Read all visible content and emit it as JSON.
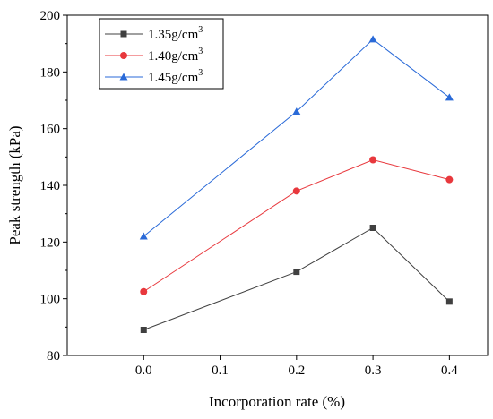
{
  "chart_data": {
    "type": "line",
    "xlabel": "Incorporation rate (%)",
    "ylabel": "Peak strength (kPa)",
    "xlim": [
      -0.1,
      0.45
    ],
    "ylim": [
      80,
      200
    ],
    "x_ticks": [
      "0.0",
      "0.1",
      "0.2",
      "0.3",
      "0.4"
    ],
    "x_tick_values": [
      0.0,
      0.1,
      0.2,
      0.3,
      0.4
    ],
    "y_ticks": [
      "80",
      "100",
      "120",
      "140",
      "160",
      "180",
      "200"
    ],
    "y_tick_values": [
      80,
      100,
      120,
      140,
      160,
      180,
      200
    ],
    "grid": false,
    "legend_position": "top-left",
    "x": [
      0.0,
      0.2,
      0.3,
      0.4
    ],
    "series": [
      {
        "name_base": "1.35g/cm",
        "name_sup": "3",
        "marker": "square",
        "color": "#404040",
        "values": [
          89,
          109.5,
          125,
          99
        ]
      },
      {
        "name_base": "1.40g/cm",
        "name_sup": "3",
        "marker": "circle",
        "color": "#e8383d",
        "values": [
          102.5,
          138,
          149,
          142
        ]
      },
      {
        "name_base": "1.45g/cm",
        "name_sup": "3",
        "marker": "triangle",
        "color": "#2a6ad8",
        "values": [
          122,
          166,
          191.5,
          171
        ]
      }
    ]
  }
}
